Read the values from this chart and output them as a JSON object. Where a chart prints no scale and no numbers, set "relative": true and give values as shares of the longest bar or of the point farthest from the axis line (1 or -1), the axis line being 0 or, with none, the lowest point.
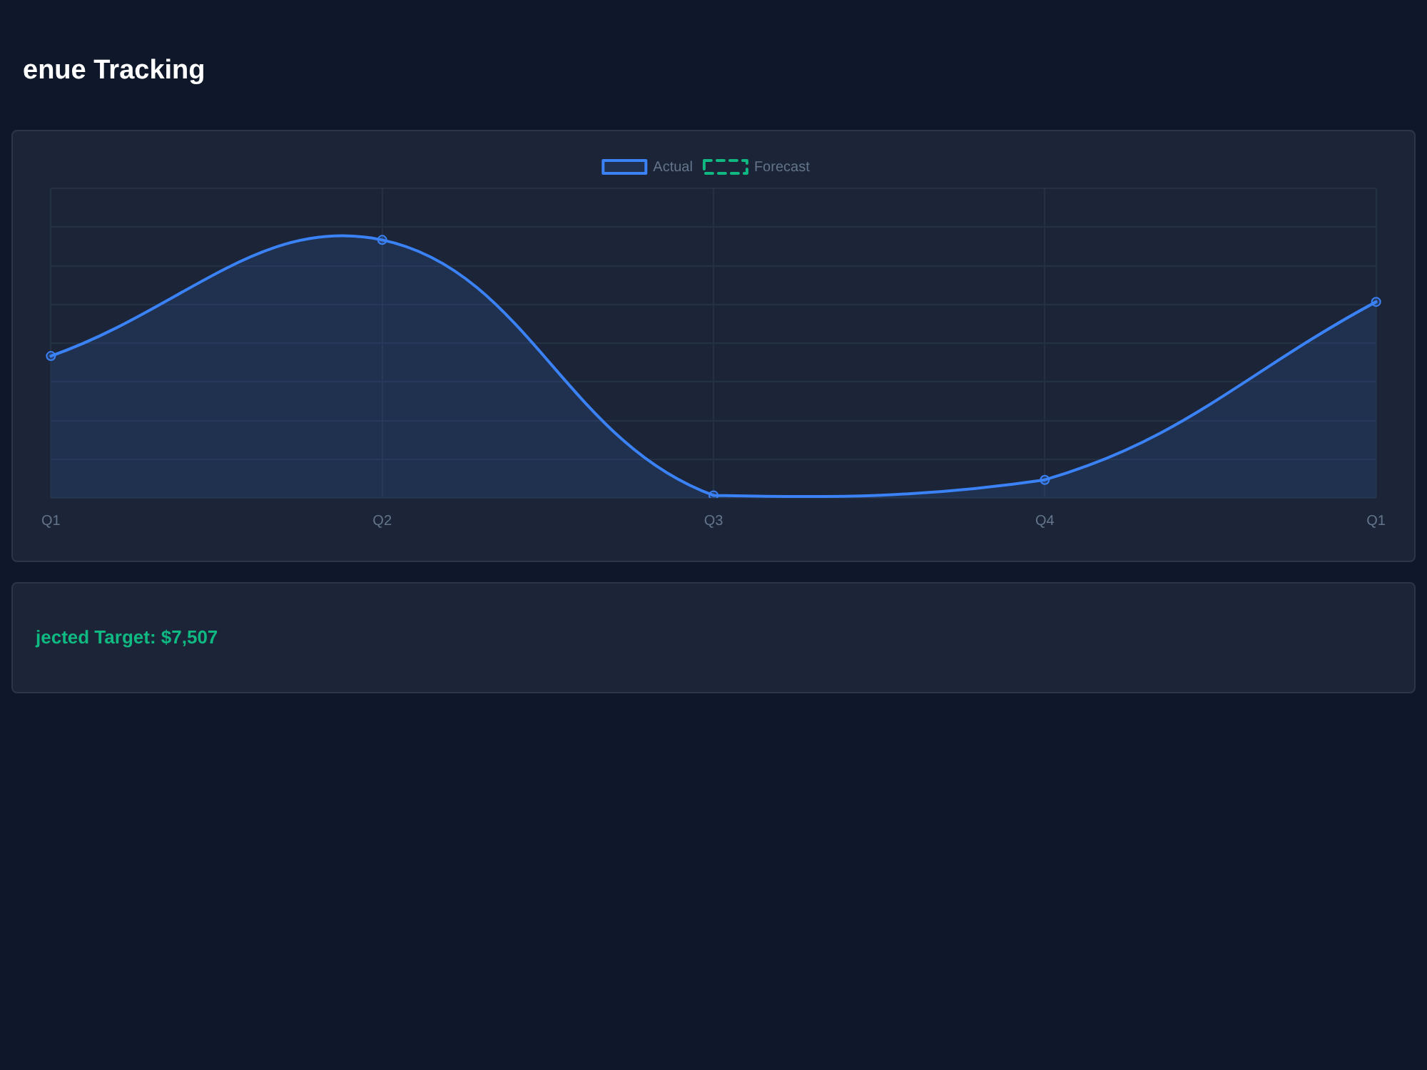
{
  "chart_data": {
    "type": "area",
    "title": "enue Tracking",
    "annotations": [
      "jected Target: $7,507"
    ],
    "categories": [
      "Q1",
      "Q2",
      "Q3",
      "Q4",
      "Q1"
    ],
    "relative": true,
    "series": [
      {
        "name": "Actual",
        "type": "area",
        "color": "#3b82f6",
        "values": [
          0.55,
          1,
          0.01,
          0.07,
          0.76
        ]
      },
      {
        "name": "Forecast",
        "type": "line",
        "color": "#10b981",
        "line_style": "dashed",
        "values": [
          null,
          null,
          null,
          null,
          null
        ]
      }
    ],
    "marker": "circle",
    "grid": true,
    "legend": "top"
  }
}
